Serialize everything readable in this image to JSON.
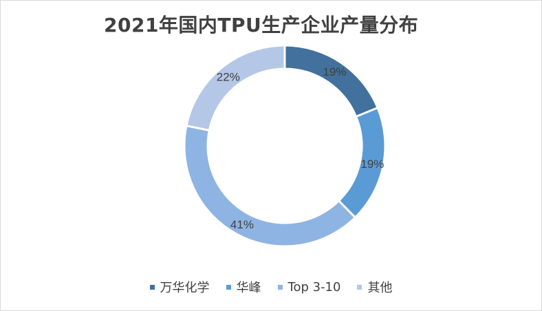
{
  "chart_data": {
    "type": "pie",
    "variant": "donut",
    "title": "2021年国内TPU生产企业产量分布",
    "categories": [
      "万华化学",
      "华峰",
      "Top 3-10",
      "其他"
    ],
    "values": [
      19,
      19,
      41,
      22
    ],
    "labels": [
      "19%",
      "19%",
      "41%",
      "22%"
    ],
    "unit": "%",
    "colors": [
      "#41719c",
      "#5b9bd5",
      "#8eb4e3",
      "#b4c7e7"
    ],
    "legend_position": "bottom"
  }
}
